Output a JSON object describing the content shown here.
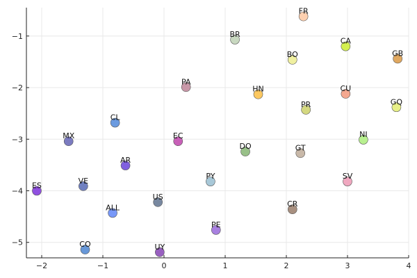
{
  "chart_data": {
    "type": "scatter",
    "title": "",
    "xlabel": "",
    "ylabel": "",
    "xlim": [
      -2.25,
      4.0
    ],
    "ylim": [
      -5.3,
      -0.45
    ],
    "grid": true,
    "legend": "none",
    "x_ticks": [
      -2,
      -1,
      0,
      1,
      2,
      3,
      4
    ],
    "x_tick_labels": [
      "−2",
      "−1",
      "0",
      "1",
      "2",
      "3",
      "4"
    ],
    "y_ticks": [
      -1,
      -2,
      -3,
      -4,
      -5
    ],
    "y_tick_labels": [
      "−1",
      "−2",
      "−3",
      "−4",
      "−5"
    ],
    "points": [
      {
        "label": "FR",
        "x": 2.28,
        "y": -0.62,
        "color": "#fdd0b0"
      },
      {
        "label": "BR",
        "x": 1.16,
        "y": -1.07,
        "color": "#c8d8c0"
      },
      {
        "label": "CA",
        "x": 2.97,
        "y": -1.2,
        "color": "#d4f050"
      },
      {
        "label": "BO",
        "x": 2.1,
        "y": -1.46,
        "color": "#f0f0a0"
      },
      {
        "label": "GB",
        "x": 3.82,
        "y": -1.44,
        "color": "#e0a860"
      },
      {
        "label": "PA",
        "x": 0.36,
        "y": -1.99,
        "color": "#c898a8"
      },
      {
        "label": "HN",
        "x": 1.54,
        "y": -2.13,
        "color": "#fcc860"
      },
      {
        "label": "CU",
        "x": 2.97,
        "y": -2.12,
        "color": "#f4a890"
      },
      {
        "label": "PR",
        "x": 2.32,
        "y": -2.43,
        "color": "#d4d880"
      },
      {
        "label": "GQ",
        "x": 3.8,
        "y": -2.38,
        "color": "#e8f088"
      },
      {
        "label": "CL",
        "x": -0.8,
        "y": -2.68,
        "color": "#6b9be0"
      },
      {
        "label": "MX",
        "x": -1.56,
        "y": -3.04,
        "color": "#7b7bc0"
      },
      {
        "label": "EC",
        "x": 0.23,
        "y": -3.04,
        "color": "#c860b8"
      },
      {
        "label": "NI",
        "x": 3.26,
        "y": -3.01,
        "color": "#b8f090"
      },
      {
        "label": "DO",
        "x": 1.33,
        "y": -3.24,
        "color": "#98c088"
      },
      {
        "label": "GT",
        "x": 2.23,
        "y": -3.27,
        "color": "#c8b8a8"
      },
      {
        "label": "AR",
        "x": -0.63,
        "y": -3.51,
        "color": "#8060e0"
      },
      {
        "label": "PY",
        "x": 0.76,
        "y": -3.82,
        "color": "#a8c8d8"
      },
      {
        "label": "SV",
        "x": 3.0,
        "y": -3.82,
        "color": "#f0a8c0"
      },
      {
        "label": "ES",
        "x": -2.08,
        "y": -4.0,
        "color": "#9050e0"
      },
      {
        "label": "VE",
        "x": -1.32,
        "y": -3.91,
        "color": "#7080c0"
      },
      {
        "label": "US",
        "x": -0.1,
        "y": -4.22,
        "color": "#7888a0"
      },
      {
        "label": "ALL",
        "x": -0.84,
        "y": -4.43,
        "color": "#7898f8"
      },
      {
        "label": "CR",
        "x": 2.1,
        "y": -4.36,
        "color": "#a89080"
      },
      {
        "label": "PE",
        "x": 0.85,
        "y": -4.76,
        "color": "#a880e0"
      },
      {
        "label": "CO",
        "x": -1.29,
        "y": -5.14,
        "color": "#6898d8"
      },
      {
        "label": "UY",
        "x": -0.07,
        "y": -5.19,
        "color": "#9860c0"
      }
    ]
  }
}
